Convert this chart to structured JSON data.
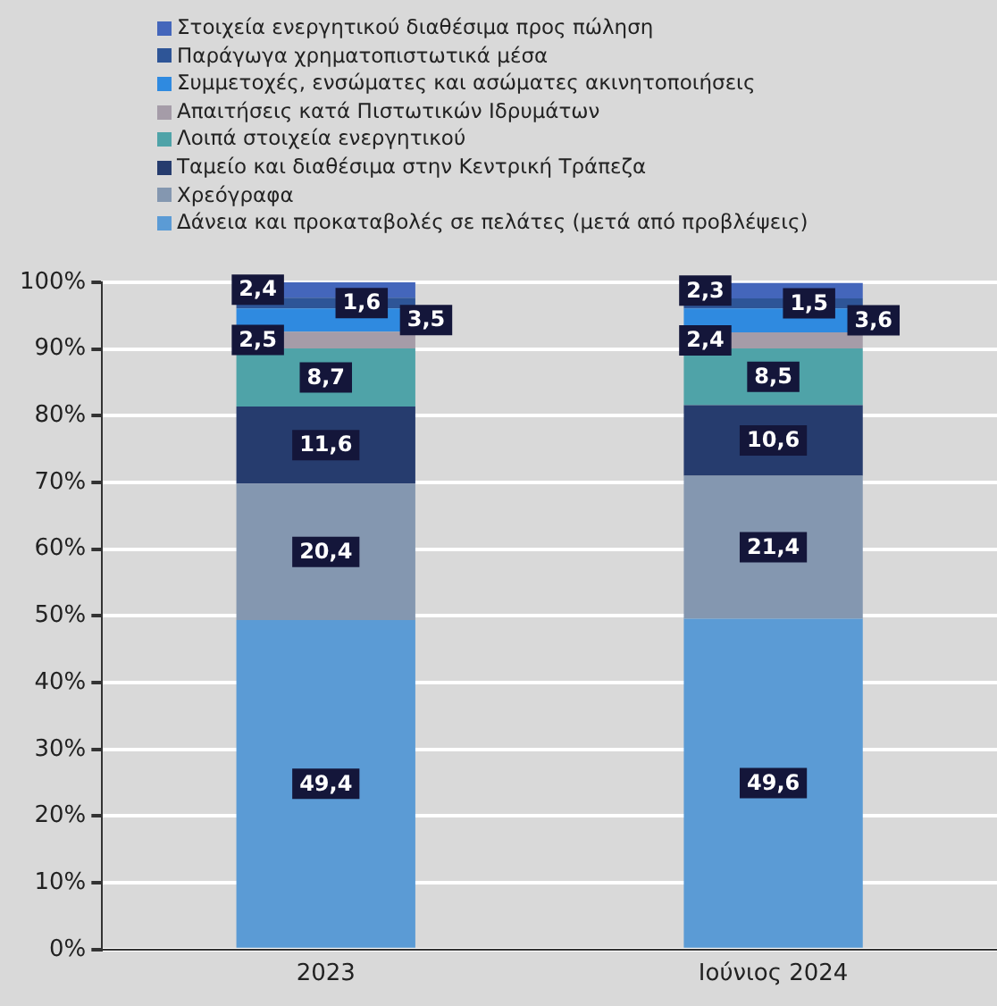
{
  "chart_data": {
    "type": "bar",
    "stacked": true,
    "categories": [
      "2023",
      "Ιούνιος 2024"
    ],
    "series": [
      {
        "name": "Δάνεια και προκαταβολές σε πελάτες (μετά από προβλέψεις)",
        "color": "#5b9bd5",
        "values": [
          49.4,
          49.6
        ],
        "value_labels": [
          "49,4",
          "49,6"
        ]
      },
      {
        "name": "Χρεόγραφα",
        "color": "#8497b0",
        "values": [
          20.4,
          21.4
        ],
        "value_labels": [
          "20,4",
          "21,4"
        ]
      },
      {
        "name": "Ταμείο και διαθέσιμα στην Κεντρική Τράπεζα",
        "color": "#263c6e",
        "values": [
          11.6,
          10.6
        ],
        "value_labels": [
          "11,6",
          "10,6"
        ]
      },
      {
        "name": "Λοιπά στοιχεία ενεργητικού",
        "color": "#4fa3a8",
        "values": [
          8.7,
          8.5
        ],
        "value_labels": [
          "8,7",
          "8,5"
        ]
      },
      {
        "name": "Απαιτήσεις κατά Πιστωτικών Ιδρυμάτων",
        "color": "#a59ca8",
        "values": [
          2.5,
          2.4
        ],
        "value_labels": [
          "2,5",
          "2,4"
        ]
      },
      {
        "name": "Συμμετοχές, ενσώματες και ασώματες ακινητοποιήσεις",
        "color": "#2f8ae0",
        "values": [
          3.5,
          3.6
        ],
        "value_labels": [
          "3,5",
          "3,6"
        ]
      },
      {
        "name": "Παράγωγα χρηματοπιστωτικά μέσα",
        "color": "#2e5597",
        "values": [
          1.6,
          1.5
        ],
        "value_labels": [
          "1,6",
          "1,5"
        ]
      },
      {
        "name": "Στοιχεία ενεργητικού διαθέσιμα προς πώληση",
        "color": "#4466bb",
        "values": [
          2.4,
          2.3
        ],
        "value_labels": [
          "2,4",
          "2,3"
        ]
      }
    ],
    "ylim": [
      0,
      100
    ],
    "yticks": [
      {
        "value": 0,
        "label": "0%"
      },
      {
        "value": 10,
        "label": "10%"
      },
      {
        "value": 20,
        "label": "20%"
      },
      {
        "value": 30,
        "label": "30%"
      },
      {
        "value": 40,
        "label": "40%"
      },
      {
        "value": 50,
        "label": "50%"
      },
      {
        "value": 60,
        "label": "60%"
      },
      {
        "value": 70,
        "label": "70%"
      },
      {
        "value": 80,
        "label": "80%"
      },
      {
        "value": 90,
        "label": "90%"
      },
      {
        "value": 100,
        "label": "100%"
      }
    ],
    "grid": "y",
    "legend": "top"
  }
}
